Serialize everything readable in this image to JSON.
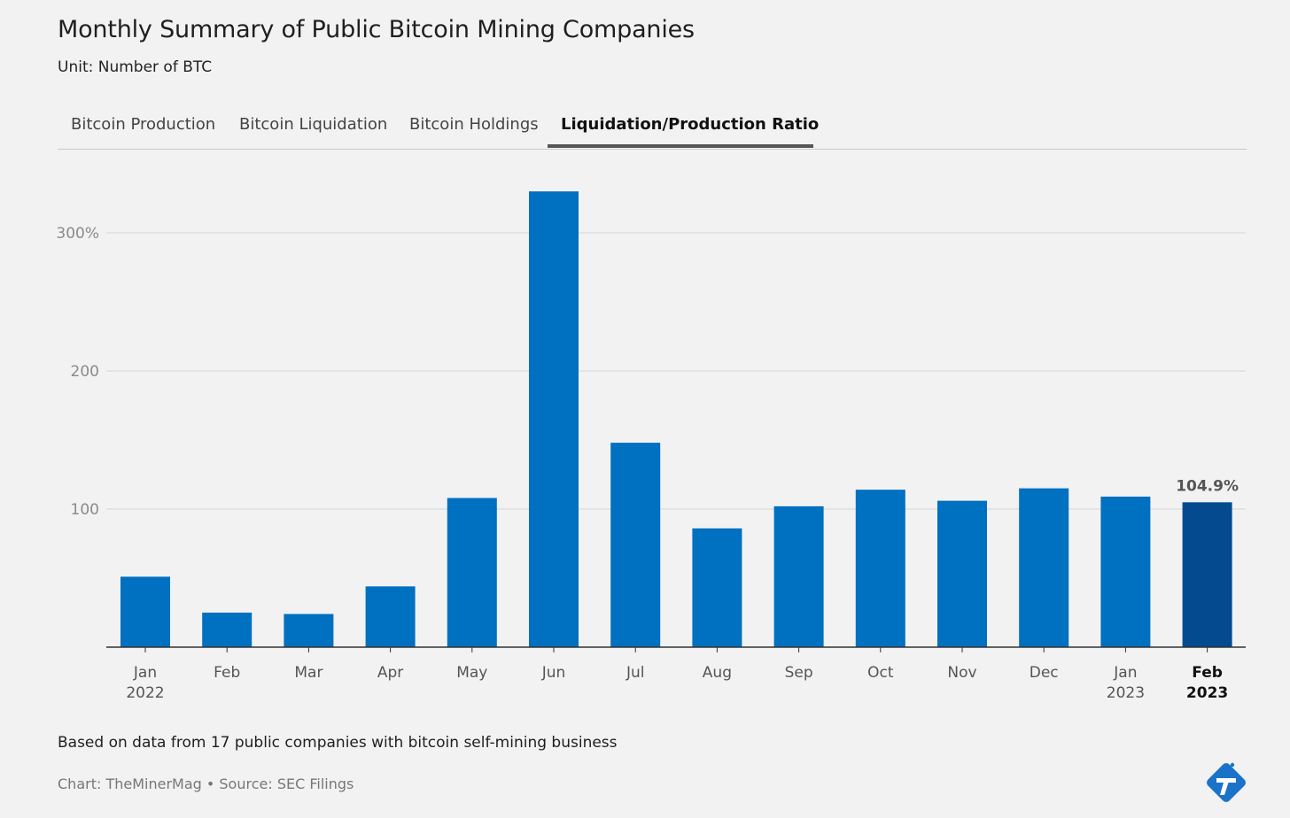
{
  "header": {
    "title": "Monthly Summary of Public Bitcoin Mining Companies",
    "subtitle": "Unit: Number of BTC"
  },
  "tabs": [
    {
      "label": "Bitcoin Production",
      "active": false
    },
    {
      "label": "Bitcoin Liquidation",
      "active": false
    },
    {
      "label": "Bitcoin Holdings",
      "active": false
    },
    {
      "label": "Liquidation/Production Ratio",
      "active": true
    }
  ],
  "chart_data": {
    "type": "bar",
    "categories": [
      "Jan 2022",
      "Feb",
      "Mar",
      "Apr",
      "May",
      "Jun",
      "Jul",
      "Aug",
      "Sep",
      "Oct",
      "Nov",
      "Dec",
      "Jan 2023",
      "Feb 2023"
    ],
    "tick_labels": [
      [
        "Jan",
        "2022"
      ],
      [
        "Feb"
      ],
      [
        "Mar"
      ],
      [
        "Apr"
      ],
      [
        "May"
      ],
      [
        "Jun"
      ],
      [
        "Jul"
      ],
      [
        "Aug"
      ],
      [
        "Sep"
      ],
      [
        "Oct"
      ],
      [
        "Nov"
      ],
      [
        "Dec"
      ],
      [
        "Jan",
        "2023"
      ],
      [
        "Feb",
        "2023"
      ]
    ],
    "values": [
      51,
      25,
      24,
      44,
      108,
      330,
      148,
      86,
      102,
      114,
      106,
      115,
      109,
      104.9
    ],
    "highlight_index": 13,
    "highlight_label": "104.9%",
    "ylim": [
      0,
      350
    ],
    "yticks": [
      100,
      200,
      300
    ],
    "ytick_labels": [
      "100",
      "200",
      "300%"
    ],
    "grid": true,
    "colors": {
      "bar": "#0070c0",
      "highlight": "#034a8f",
      "grid": "#d6d6d6",
      "axis": "#333333",
      "tick_text": "#8a8a8a"
    }
  },
  "footer": {
    "note": "Based on data from 17 public companies with bitcoin self-mining business",
    "credits": "Chart: TheMinerMag • Source: SEC Filings",
    "logo_icon": "theminermag-logo-icon"
  }
}
